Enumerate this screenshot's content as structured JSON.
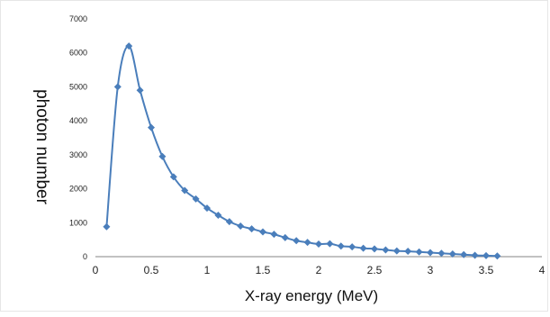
{
  "chart_data": {
    "type": "line",
    "title": "",
    "xlabel": "X-ray energy (MeV)",
    "ylabel": "photon number",
    "xlim": [
      0,
      4
    ],
    "ylim": [
      0,
      7000
    ],
    "x_ticks": [
      "0",
      "0.5",
      "1",
      "1.5",
      "2",
      "2.5",
      "3",
      "3.5",
      "4"
    ],
    "y_ticks": [
      "0",
      "1000",
      "2000",
      "3000",
      "4000",
      "5000",
      "6000",
      "7000"
    ],
    "grid": false,
    "legend": "none",
    "series": [
      {
        "color": "#4a7ebb",
        "marker": "diamond",
        "x": [
          0.1,
          0.2,
          0.3,
          0.4,
          0.5,
          0.6,
          0.7,
          0.8,
          0.9,
          1.0,
          1.1,
          1.2,
          1.3,
          1.4,
          1.5,
          1.6,
          1.7,
          1.8,
          1.9,
          2.0,
          2.1,
          2.2,
          2.3,
          2.4,
          2.5,
          2.6,
          2.7,
          2.8,
          2.9,
          3.0,
          3.1,
          3.2,
          3.3,
          3.4,
          3.5,
          3.6
        ],
        "y": [
          880,
          5000,
          6200,
          4900,
          3800,
          2950,
          2350,
          1950,
          1700,
          1430,
          1220,
          1030,
          900,
          820,
          730,
          660,
          560,
          470,
          420,
          370,
          380,
          310,
          290,
          250,
          230,
          200,
          170,
          160,
          140,
          120,
          100,
          80,
          60,
          40,
          30,
          20
        ]
      }
    ]
  }
}
